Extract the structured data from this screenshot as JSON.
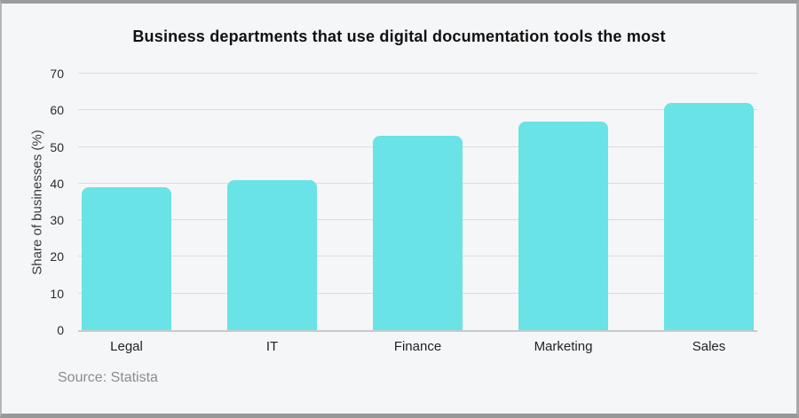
{
  "chart_data": {
    "type": "bar",
    "title": "Business departments that use digital documentation tools the most",
    "categories": [
      "Legal",
      "IT",
      "Finance",
      "Marketing",
      "Sales"
    ],
    "values": [
      39,
      41,
      53,
      57,
      62
    ],
    "xlabel": "",
    "ylabel": "Share of businesses (%)",
    "ylim": [
      0,
      70
    ],
    "ytick_interval": 10,
    "grid": "horizontal",
    "legend": "none",
    "source": "Source: Statista",
    "colors": {
      "bar_fill": "#69e3e6",
      "gridline": "#dcdcdc",
      "axis_line": "#c9c9c9",
      "title_text": "#111111",
      "tick_text": "#2b2b2b",
      "axis_title_text": "#3a3a3a",
      "source_text": "#8c8c8c",
      "background": "#f5f6f8",
      "frame_border": "#9b9b9b"
    }
  }
}
